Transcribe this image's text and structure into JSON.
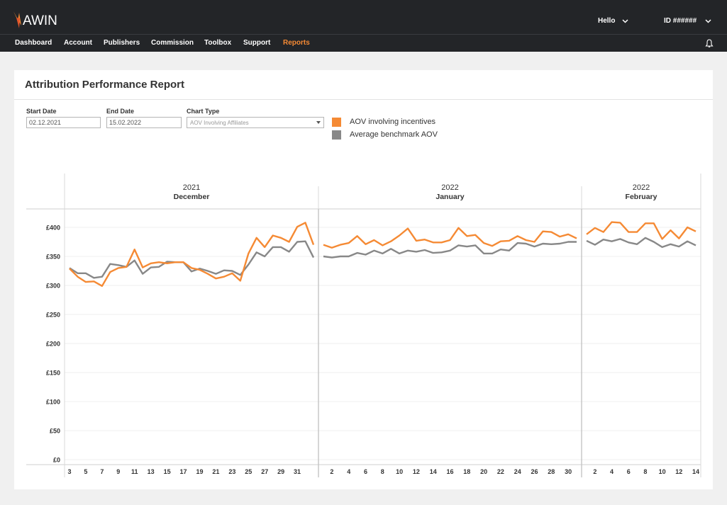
{
  "header": {
    "logo_text": "AWIN",
    "greeting": "Hello",
    "account_id": "ID ######",
    "colors": {
      "bar": "#232528",
      "accent": "#f58a34"
    }
  },
  "nav": {
    "items": [
      {
        "label": "Dashboard"
      },
      {
        "label": "Account"
      },
      {
        "label": "Publishers"
      },
      {
        "label": "Commission"
      },
      {
        "label": "Toolbox"
      },
      {
        "label": "Support"
      },
      {
        "label": "Reports"
      }
    ],
    "active": "Reports",
    "notifications_icon": "bell-icon"
  },
  "report": {
    "title": "Attribution Performance Report",
    "start_date": {
      "label": "Start Date",
      "value": "02.12.2021"
    },
    "end_date": {
      "label": "End Date",
      "value": "15.02.2022"
    },
    "chart_type": {
      "label": "Chart Type",
      "value": "AOV Involving Affiliates"
    }
  },
  "chart_data": {
    "type": "line",
    "y_ticks": [
      "£400",
      "£350",
      "£300",
      "£250",
      "£200",
      "£150",
      "£100",
      "£50",
      "£0"
    ],
    "ylim": [
      0,
      400
    ],
    "grid": true,
    "legend": "top-left",
    "panels": [
      {
        "year": "2021",
        "month": "December",
        "day_start": 3,
        "tick_labels": [
          "3",
          "5",
          "7",
          "9",
          "11",
          "13",
          "15",
          "17",
          "19",
          "21",
          "23",
          "25",
          "27",
          "29",
          "31"
        ],
        "series": [
          {
            "name": "AOV involving incentives",
            "color": "#f58a34",
            "values": [
              329,
              315,
              306,
              307,
              299,
              323,
              330,
              332,
              362,
              331,
              338,
              340,
              338,
              340,
              340,
              330,
              327,
              320,
              312,
              315,
              321,
              308,
              355,
              382,
              366,
              386,
              382,
              375,
              401,
              408,
              370
            ]
          },
          {
            "name": "Average benchmark AOV",
            "color": "#888888",
            "values": [
              330,
              321,
              321,
              313,
              315,
              337,
              335,
              332,
              343,
              320,
              331,
              332,
              341,
              340,
              340,
              324,
              329,
              325,
              320,
              326,
              325,
              318,
              336,
              357,
              350,
              366,
              366,
              358,
              375,
              376,
              348
            ]
          }
        ]
      },
      {
        "year": "2022",
        "month": "January",
        "day_start": 1,
        "tick_labels": [
          "2",
          "4",
          "6",
          "8",
          "10",
          "12",
          "14",
          "16",
          "18",
          "20",
          "22",
          "24",
          "26",
          "28",
          "30"
        ],
        "series": [
          {
            "name": "AOV involving incentives",
            "color": "#f58a34",
            "values": [
              370,
              365,
              370,
              373,
              385,
              371,
              378,
              369,
              376,
              386,
              398,
              377,
              379,
              374,
              374,
              378,
              399,
              385,
              387,
              373,
              368,
              376,
              377,
              385,
              378,
              375,
              393,
              392,
              384,
              388,
              381
            ]
          },
          {
            "name": "Average benchmark AOV",
            "color": "#888888",
            "values": [
              350,
              348,
              350,
              350,
              356,
              353,
              360,
              355,
              363,
              355,
              360,
              358,
              361,
              356,
              357,
              360,
              369,
              367,
              369,
              355,
              355,
              362,
              360,
              373,
              372,
              367,
              372,
              371,
              372,
              375,
              375
            ]
          }
        ]
      },
      {
        "year": "2022",
        "month": "February",
        "day_start": 1,
        "tick_labels": [
          "2",
          "4",
          "6",
          "8",
          "10",
          "12",
          "14"
        ],
        "series": [
          {
            "name": "AOV involving incentives",
            "color": "#f58a34",
            "values": [
              388,
              399,
              392,
              409,
              408,
              392,
              392,
              407,
              407,
              380,
              395,
              381,
              400,
              393
            ]
          },
          {
            "name": "Average benchmark AOV",
            "color": "#888888",
            "values": [
              377,
              370,
              379,
              376,
              380,
              374,
              371,
              382,
              375,
              366,
              371,
              367,
              376,
              369
            ]
          }
        ]
      }
    ]
  }
}
